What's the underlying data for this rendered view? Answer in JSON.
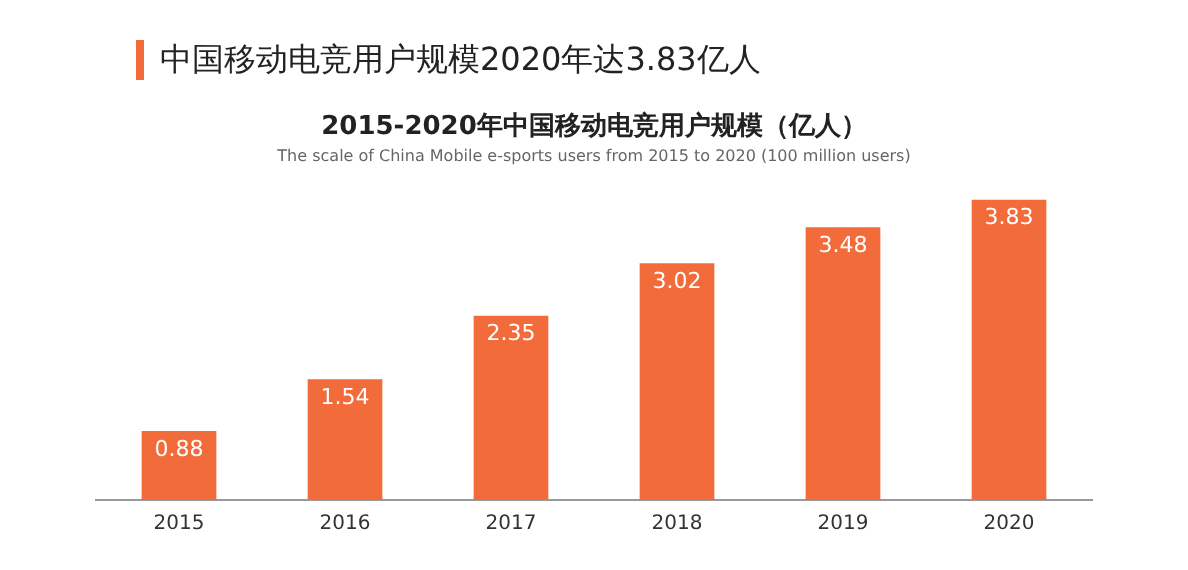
{
  "chart_data": {
    "type": "bar",
    "title": "2015-2020年中国移动电竞用户规模（亿人）",
    "subtitle": "The scale of China Mobile e-sports users from 2015 to 2020 (100 million users)",
    "annotations": [
      "中国移动电竞用户规模2020年达3.83亿人"
    ],
    "categories": [
      "2015",
      "2016",
      "2017",
      "2018",
      "2019",
      "2020"
    ],
    "values": [
      0.88,
      1.54,
      2.35,
      3.02,
      3.48,
      3.83
    ],
    "color": "#f26b3a",
    "data_labels": true,
    "grid": false,
    "legend": false
  }
}
